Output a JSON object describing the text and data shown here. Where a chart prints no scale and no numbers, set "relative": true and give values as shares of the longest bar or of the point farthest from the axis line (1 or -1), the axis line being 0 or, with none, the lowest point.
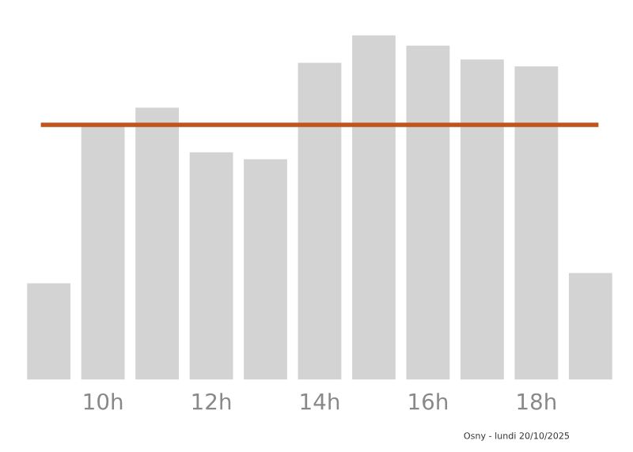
{
  "chart_data": {
    "type": "bar",
    "relative": true,
    "categories": [
      null,
      "10h",
      null,
      "12h",
      null,
      "14h",
      null,
      "16h",
      null,
      "18h",
      null
    ],
    "series": [
      {
        "color": "#d3d3d3",
        "values": [
          0.28,
          0.74,
          0.79,
          0.66,
          0.64,
          0.92,
          1,
          0.97,
          0.93,
          0.91,
          0.31
        ]
      }
    ],
    "ref_lines": [
      {
        "axis": "y",
        "value": 0.74,
        "color": "#c0541c"
      }
    ],
    "annotations": [
      "Osny - lundi 20/10/2025"
    ],
    "grid": false,
    "legend": false
  }
}
